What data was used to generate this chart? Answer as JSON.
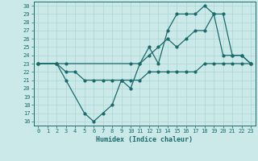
{
  "xlabel": "Humidex (Indice chaleur)",
  "bg_color": "#cce9e9",
  "line_color": "#1a6b6b",
  "grid_color": "#aad4d4",
  "xlim": [
    -0.5,
    23.5
  ],
  "ylim": [
    15.5,
    30.5
  ],
  "xticks": [
    0,
    1,
    2,
    3,
    4,
    5,
    6,
    7,
    8,
    9,
    10,
    11,
    12,
    13,
    14,
    15,
    16,
    17,
    18,
    19,
    20,
    21,
    22,
    23
  ],
  "yticks": [
    16,
    17,
    18,
    19,
    20,
    21,
    22,
    23,
    24,
    25,
    26,
    27,
    28,
    29,
    30
  ],
  "line1_x": [
    0,
    2,
    3,
    5,
    6,
    7,
    8,
    9,
    10,
    11,
    12,
    13,
    14,
    15,
    16,
    17,
    18,
    19,
    20,
    21,
    22,
    23
  ],
  "line1_y": [
    23,
    23,
    21,
    17,
    16,
    17,
    18,
    21,
    20,
    23,
    25,
    23,
    27,
    29,
    29,
    29,
    30,
    29,
    24,
    24,
    24,
    23
  ],
  "line2_x": [
    0,
    2,
    3,
    10,
    11,
    12,
    13,
    14,
    15,
    16,
    17,
    18,
    19,
    20,
    21,
    22,
    23
  ],
  "line2_y": [
    23,
    23,
    23,
    23,
    23,
    24,
    25,
    26,
    25,
    26,
    27,
    27,
    29,
    29,
    24,
    24,
    23
  ],
  "line3_x": [
    0,
    2,
    3,
    4,
    5,
    6,
    7,
    8,
    9,
    10,
    11,
    12,
    13,
    14,
    15,
    16,
    17,
    18,
    19,
    20,
    21,
    22,
    23
  ],
  "line3_y": [
    23,
    23,
    22,
    22,
    21,
    21,
    21,
    21,
    21,
    21,
    21,
    22,
    22,
    22,
    22,
    22,
    22,
    23,
    23,
    23,
    23,
    23,
    23
  ]
}
